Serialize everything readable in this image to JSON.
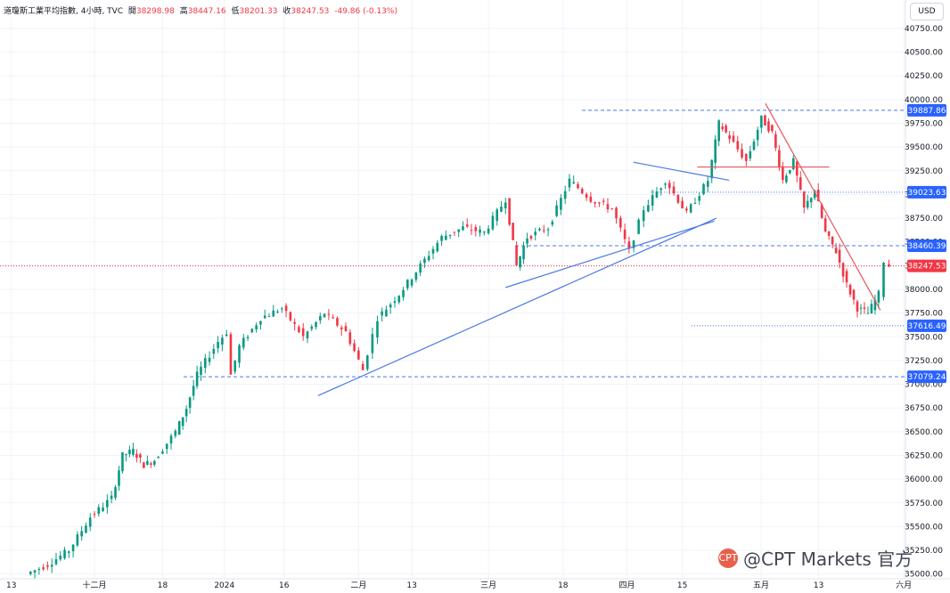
{
  "legend": {
    "symbol": "道瓊斯工業平均指數, 4小時, TVC",
    "open_label": "開",
    "open": "38298.98",
    "high_label": "高",
    "high": "38447.16",
    "low_label": "低",
    "low": "38201.33",
    "close_label": "收",
    "close": "38247.53",
    "change": "-49.86 (-0.13%)"
  },
  "currency": "USD",
  "watermark": {
    "text": "@CPT Markets 官方",
    "logo_icon": "cpt-markets-logo-icon"
  },
  "colors": {
    "up": "#089981",
    "down": "#f23645",
    "trendline_blue": "#4a78e8",
    "trendline_red": "#e8555b",
    "price_line": "#f23645",
    "level_line": "#4a78e8"
  },
  "chart_data": {
    "type": "candlestick",
    "title": "道瓊斯工業平均指數, 4小時, TVC",
    "ylim": [
      34950,
      41050
    ],
    "y_ticks": [
      "40750.00",
      "40500.00",
      "40250.00",
      "40000.00",
      "39750.00",
      "39500.00",
      "39250.00",
      "39000.00",
      "38750.00",
      "38500.00",
      "38250.00",
      "38000.00",
      "37750.00",
      "37500.00",
      "37250.00",
      "37000.00",
      "36750.00",
      "36500.00",
      "36250.00",
      "36000.00",
      "35750.00",
      "35500.00",
      "35250.00",
      "35000.00"
    ],
    "x_ticks": [
      "13",
      "十二月",
      "18",
      "2024",
      "16",
      "二月",
      "13",
      "三月",
      "18",
      "四月",
      "15",
      "五月",
      "13",
      "六月"
    ],
    "price_levels": [
      {
        "value": 39887.86,
        "label": "39887.86",
        "style": "dashed"
      },
      {
        "value": 39023.63,
        "label": "39023.63",
        "style": "dotted"
      },
      {
        "value": 38460.39,
        "label": "38460.39",
        "style": "dashed"
      },
      {
        "value": 38247.53,
        "label": "38247.53",
        "style": "current"
      },
      {
        "value": 37616.49,
        "label": "37616.49",
        "style": "dotted"
      },
      {
        "value": 37079.24,
        "label": "37079.24",
        "style": "dashed"
      }
    ],
    "trendlines": [
      {
        "color": "blue",
        "points": [
          [
            14.6,
            36880
          ],
          [
            33.3,
            38750
          ]
        ]
      },
      {
        "color": "blue",
        "points": [
          [
            23.4,
            38020
          ],
          [
            33.2,
            38720
          ]
        ]
      },
      {
        "color": "blue",
        "points": [
          [
            29.4,
            39340
          ],
          [
            33.9,
            39150
          ]
        ]
      },
      {
        "color": "red",
        "points": [
          [
            35.6,
            39960
          ],
          [
            41.0,
            37780
          ]
        ]
      },
      {
        "color": "red",
        "points": [
          [
            32.4,
            39290
          ],
          [
            38.6,
            39290
          ]
        ]
      }
    ],
    "series": [
      {
        "x": 1.0,
        "y": 35000
      },
      {
        "x": 2.0,
        "y": 35100
      },
      {
        "x": 3.0,
        "y": 35250
      },
      {
        "x": 4.0,
        "y": 35600
      },
      {
        "x": 5.0,
        "y": 35800
      },
      {
        "x": 5.5,
        "y": 36250
      },
      {
        "x": 6.0,
        "y": 36300
      },
      {
        "x": 6.5,
        "y": 36150
      },
      {
        "x": 7.0,
        "y": 36200
      },
      {
        "x": 8.0,
        "y": 36500
      },
      {
        "x": 8.5,
        "y": 36750
      },
      {
        "x": 9.0,
        "y": 37100
      },
      {
        "x": 10.0,
        "y": 37450
      },
      {
        "x": 10.4,
        "y": 37550
      },
      {
        "x": 10.6,
        "y": 37100
      },
      {
        "x": 11.0,
        "y": 37400
      },
      {
        "x": 12.0,
        "y": 37700
      },
      {
        "x": 13.0,
        "y": 37800
      },
      {
        "x": 14.0,
        "y": 37500
      },
      {
        "x": 15.0,
        "y": 37750
      },
      {
        "x": 16.0,
        "y": 37550
      },
      {
        "x": 16.8,
        "y": 37150
      },
      {
        "x": 17.5,
        "y": 37700
      },
      {
        "x": 18.5,
        "y": 37950
      },
      {
        "x": 19.5,
        "y": 38250
      },
      {
        "x": 20.5,
        "y": 38550
      },
      {
        "x": 21.5,
        "y": 38650
      },
      {
        "x": 22.5,
        "y": 38600
      },
      {
        "x": 23.5,
        "y": 38950
      },
      {
        "x": 24.0,
        "y": 38250
      },
      {
        "x": 24.5,
        "y": 38550
      },
      {
        "x": 25.5,
        "y": 38650
      },
      {
        "x": 26.5,
        "y": 39150
      },
      {
        "x": 27.5,
        "y": 38950
      },
      {
        "x": 28.5,
        "y": 38850
      },
      {
        "x": 29.3,
        "y": 38400
      },
      {
        "x": 30.0,
        "y": 38850
      },
      {
        "x": 31.0,
        "y": 39150
      },
      {
        "x": 32.0,
        "y": 38800
      },
      {
        "x": 33.0,
        "y": 39150
      },
      {
        "x": 33.5,
        "y": 39750
      },
      {
        "x": 34.0,
        "y": 39600
      },
      {
        "x": 34.8,
        "y": 39350
      },
      {
        "x": 35.5,
        "y": 39800
      },
      {
        "x": 36.0,
        "y": 39650
      },
      {
        "x": 36.5,
        "y": 39150
      },
      {
        "x": 37.0,
        "y": 39350
      },
      {
        "x": 37.5,
        "y": 38850
      },
      {
        "x": 38.0,
        "y": 39050
      },
      {
        "x": 38.5,
        "y": 38600
      },
      {
        "x": 39.0,
        "y": 38400
      },
      {
        "x": 39.5,
        "y": 38050
      },
      {
        "x": 40.0,
        "y": 37800
      },
      {
        "x": 40.5,
        "y": 37750
      },
      {
        "x": 41.0,
        "y": 37950
      },
      {
        "x": 41.3,
        "y": 38300
      },
      {
        "x": 41.5,
        "y": 38250
      }
    ],
    "grid": true,
    "legend_position": "top-left"
  }
}
